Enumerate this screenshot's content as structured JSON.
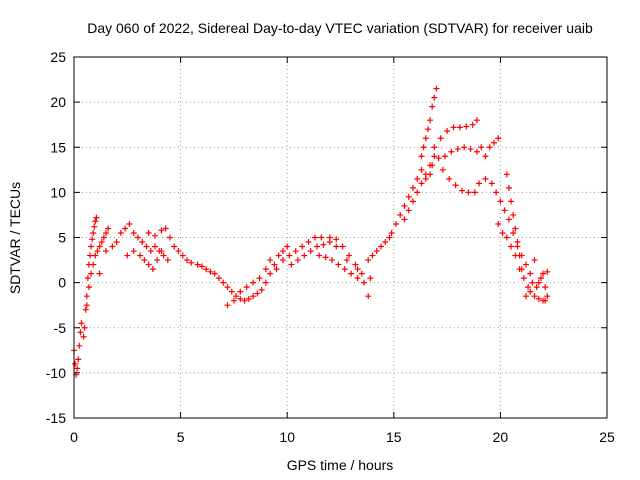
{
  "chart_data": {
    "type": "scatter",
    "title": "Day 060 of 2022, Sidereal Day-to-day VTEC variation (SDTVAR) for receiver uaib",
    "xlabel": "GPS time / hours",
    "ylabel": "SDTVAR / TECUs",
    "xlim": [
      0,
      25
    ],
    "ylim": [
      -15,
      25
    ],
    "xticks": [
      0,
      5,
      10,
      15,
      20,
      25
    ],
    "yticks": [
      -15,
      -10,
      -5,
      0,
      5,
      10,
      15,
      20,
      25
    ],
    "grid": true,
    "marker": "+",
    "series": [
      {
        "name": "SDTVAR",
        "color": "#ff0000",
        "points": [
          [
            0.0,
            -7.5
          ],
          [
            0.05,
            -9.0
          ],
          [
            0.1,
            -10.2
          ],
          [
            0.15,
            -9.5
          ],
          [
            0.2,
            -8.5
          ],
          [
            0.25,
            -7.0
          ],
          [
            0.3,
            -5.5
          ],
          [
            0.35,
            -4.5
          ],
          [
            0.45,
            -6.0
          ],
          [
            0.5,
            -5.0
          ],
          [
            0.55,
            -3.0
          ],
          [
            0.6,
            -1.5
          ],
          [
            0.65,
            0.5
          ],
          [
            0.7,
            2.0
          ],
          [
            0.75,
            3.0
          ],
          [
            0.8,
            4.0
          ],
          [
            0.85,
            4.8
          ],
          [
            0.9,
            5.5
          ],
          [
            0.95,
            6.2
          ],
          [
            1.0,
            6.8
          ],
          [
            1.05,
            7.2
          ],
          [
            0.6,
            -2.5
          ],
          [
            0.7,
            -0.5
          ],
          [
            0.8,
            1.0
          ],
          [
            0.9,
            2.0
          ],
          [
            1.0,
            3.0
          ],
          [
            1.1,
            3.5
          ],
          [
            1.2,
            4.0
          ],
          [
            1.3,
            4.5
          ],
          [
            1.4,
            5.0
          ],
          [
            1.5,
            5.5
          ],
          [
            1.6,
            6.0
          ],
          [
            1.2,
            1.0
          ],
          [
            1.5,
            3.5
          ],
          [
            1.8,
            4.0
          ],
          [
            2.0,
            4.5
          ],
          [
            2.2,
            5.5
          ],
          [
            2.4,
            6.0
          ],
          [
            2.6,
            6.5
          ],
          [
            2.8,
            5.5
          ],
          [
            3.0,
            5.0
          ],
          [
            3.2,
            4.5
          ],
          [
            3.4,
            4.0
          ],
          [
            3.6,
            3.5
          ],
          [
            3.8,
            4.0
          ],
          [
            4.0,
            3.5
          ],
          [
            4.2,
            3.0
          ],
          [
            4.4,
            2.5
          ],
          [
            2.5,
            3.0
          ],
          [
            2.8,
            3.5
          ],
          [
            3.1,
            3.0
          ],
          [
            3.3,
            2.5
          ],
          [
            3.5,
            2.0
          ],
          [
            3.7,
            1.5
          ],
          [
            3.9,
            2.5
          ],
          [
            4.1,
            3.5
          ],
          [
            3.5,
            5.5
          ],
          [
            3.8,
            5.2
          ],
          [
            4.1,
            5.8
          ],
          [
            4.3,
            6.0
          ],
          [
            4.5,
            5.0
          ],
          [
            4.7,
            4.0
          ],
          [
            4.9,
            3.5
          ],
          [
            5.1,
            3.0
          ],
          [
            5.3,
            2.5
          ],
          [
            5.5,
            2.2
          ],
          [
            5.8,
            2.0
          ],
          [
            6.0,
            1.8
          ],
          [
            6.2,
            1.5
          ],
          [
            6.4,
            1.2
          ],
          [
            6.6,
            1.0
          ],
          [
            6.8,
            0.5
          ],
          [
            7.0,
            0.0
          ],
          [
            7.2,
            -0.5
          ],
          [
            7.4,
            -1.0
          ],
          [
            7.6,
            -1.5
          ],
          [
            7.8,
            -1.8
          ],
          [
            8.0,
            -2.0
          ],
          [
            8.2,
            -1.8
          ],
          [
            8.4,
            -1.5
          ],
          [
            7.2,
            -2.5
          ],
          [
            7.5,
            -2.0
          ],
          [
            7.8,
            -1.0
          ],
          [
            8.1,
            -0.5
          ],
          [
            8.4,
            0.0
          ],
          [
            8.7,
            0.5
          ],
          [
            9.0,
            1.5
          ],
          [
            9.2,
            2.5
          ],
          [
            8.6,
            -1.2
          ],
          [
            8.8,
            -0.8
          ],
          [
            9.0,
            0.0
          ],
          [
            9.2,
            1.0
          ],
          [
            9.4,
            2.0
          ],
          [
            9.6,
            3.0
          ],
          [
            9.8,
            3.5
          ],
          [
            10.0,
            4.0
          ],
          [
            9.5,
            1.5
          ],
          [
            9.8,
            2.5
          ],
          [
            10.1,
            3.0
          ],
          [
            10.4,
            3.5
          ],
          [
            10.7,
            4.0
          ],
          [
            11.0,
            4.5
          ],
          [
            11.3,
            5.0
          ],
          [
            11.6,
            5.0
          ],
          [
            10.2,
            2.0
          ],
          [
            10.5,
            2.5
          ],
          [
            10.8,
            3.0
          ],
          [
            11.1,
            3.5
          ],
          [
            11.4,
            4.0
          ],
          [
            11.7,
            4.2
          ],
          [
            12.0,
            4.5
          ],
          [
            12.3,
            4.0
          ],
          [
            12.0,
            5.0
          ],
          [
            12.3,
            4.8
          ],
          [
            12.6,
            4.0
          ],
          [
            12.9,
            3.0
          ],
          [
            13.2,
            2.0
          ],
          [
            13.5,
            1.0
          ],
          [
            13.3,
            1.5
          ],
          [
            12.8,
            2.5
          ],
          [
            11.5,
            3.0
          ],
          [
            11.8,
            2.8
          ],
          [
            12.1,
            2.5
          ],
          [
            12.4,
            2.0
          ],
          [
            12.7,
            1.5
          ],
          [
            13.0,
            1.0
          ],
          [
            13.3,
            0.5
          ],
          [
            13.6,
            0.0
          ],
          [
            13.8,
            2.5
          ],
          [
            14.0,
            3.0
          ],
          [
            14.2,
            3.5
          ],
          [
            14.4,
            4.0
          ],
          [
            14.6,
            4.5
          ],
          [
            14.8,
            5.0
          ],
          [
            13.8,
            -1.5
          ],
          [
            13.9,
            0.5
          ],
          [
            14.9,
            5.5
          ],
          [
            15.1,
            6.5
          ],
          [
            15.3,
            7.5
          ],
          [
            15.5,
            8.5
          ],
          [
            15.7,
            9.5
          ],
          [
            15.9,
            10.5
          ],
          [
            16.1,
            11.5
          ],
          [
            16.3,
            12.5
          ],
          [
            15.5,
            7.0
          ],
          [
            15.7,
            8.0
          ],
          [
            15.9,
            9.0
          ],
          [
            16.1,
            10.0
          ],
          [
            16.3,
            11.0
          ],
          [
            16.5,
            12.0
          ],
          [
            16.7,
            13.0
          ],
          [
            16.9,
            14.0
          ],
          [
            16.3,
            14.0
          ],
          [
            16.5,
            16.0
          ],
          [
            16.7,
            18.0
          ],
          [
            16.8,
            19.5
          ],
          [
            16.9,
            20.5
          ],
          [
            17.0,
            21.5
          ],
          [
            16.6,
            17.0
          ],
          [
            16.4,
            15.0
          ],
          [
            16.9,
            15.0
          ],
          [
            17.2,
            16.0
          ],
          [
            17.5,
            16.8
          ],
          [
            17.8,
            17.2
          ],
          [
            18.1,
            17.2
          ],
          [
            18.4,
            17.3
          ],
          [
            18.7,
            17.5
          ],
          [
            18.9,
            18.0
          ],
          [
            16.8,
            13.0
          ],
          [
            17.1,
            13.8
          ],
          [
            17.4,
            14.0
          ],
          [
            17.7,
            14.5
          ],
          [
            18.0,
            14.8
          ],
          [
            18.3,
            15.0
          ],
          [
            18.6,
            14.8
          ],
          [
            18.9,
            14.5
          ],
          [
            19.1,
            15.0
          ],
          [
            19.3,
            14.0
          ],
          [
            19.5,
            15.0
          ],
          [
            19.7,
            15.5
          ],
          [
            19.9,
            16.0
          ],
          [
            17.3,
            12.5
          ],
          [
            17.6,
            11.5
          ],
          [
            17.9,
            10.8
          ],
          [
            18.2,
            10.2
          ],
          [
            18.5,
            10.0
          ],
          [
            18.8,
            10.0
          ],
          [
            16.5,
            11.5
          ],
          [
            16.7,
            12.0
          ],
          [
            19.0,
            11.0
          ],
          [
            19.3,
            11.5
          ],
          [
            19.6,
            11.0
          ],
          [
            19.8,
            10.0
          ],
          [
            20.0,
            9.0
          ],
          [
            20.2,
            8.0
          ],
          [
            20.4,
            7.0
          ],
          [
            20.6,
            5.5
          ],
          [
            20.8,
            4.0
          ],
          [
            21.0,
            3.0
          ],
          [
            21.2,
            2.0
          ],
          [
            19.9,
            6.5
          ],
          [
            20.1,
            5.5
          ],
          [
            20.3,
            5.0
          ],
          [
            20.5,
            4.0
          ],
          [
            20.7,
            3.0
          ],
          [
            20.9,
            1.5
          ],
          [
            21.1,
            0.5
          ],
          [
            21.3,
            -0.5
          ],
          [
            20.3,
            12.0
          ],
          [
            20.4,
            10.5
          ],
          [
            20.5,
            9.0
          ],
          [
            20.6,
            7.5
          ],
          [
            20.7,
            6.0
          ],
          [
            20.8,
            4.5
          ],
          [
            20.9,
            3.0
          ],
          [
            21.0,
            1.5
          ],
          [
            21.4,
            -1.0
          ],
          [
            21.6,
            -1.5
          ],
          [
            21.8,
            -1.8
          ],
          [
            22.0,
            -2.0
          ],
          [
            22.2,
            -1.5
          ],
          [
            21.5,
            0.0
          ],
          [
            21.7,
            -0.5
          ],
          [
            21.9,
            0.5
          ],
          [
            22.0,
            1.0
          ],
          [
            22.1,
            -0.5
          ],
          [
            22.2,
            1.2
          ],
          [
            21.2,
            -1.5
          ],
          [
            21.4,
            1.0
          ],
          [
            21.6,
            2.5
          ],
          [
            21.8,
            0.0
          ],
          [
            22.1,
            -2.0
          ]
        ]
      }
    ]
  }
}
